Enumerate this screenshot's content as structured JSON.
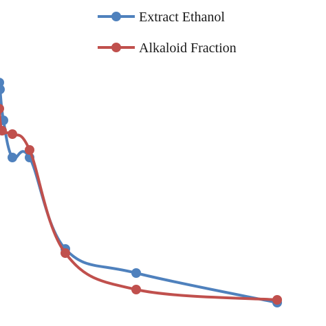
{
  "chart_data": {
    "type": "line",
    "title": "",
    "xlabel": "",
    "ylabel": "",
    "grid": false,
    "legend": "top-right",
    "series": [
      {
        "name": "Extract Ethanol",
        "color": "#4f81bd",
        "points": [
          [
            -1,
            120
          ],
          [
            0,
            130
          ],
          [
            5,
            175
          ],
          [
            18,
            229
          ],
          [
            43,
            229
          ],
          [
            95,
            362
          ],
          [
            198,
            397
          ],
          [
            403,
            440
          ]
        ]
      },
      {
        "name": "Alkaloid Fraction",
        "color": "#c0504d",
        "points": [
          [
            -1,
            158
          ],
          [
            3,
            190
          ],
          [
            18,
            195
          ],
          [
            43,
            218
          ],
          [
            95,
            368
          ],
          [
            198,
            421
          ],
          [
            403,
            436
          ]
        ]
      }
    ]
  }
}
